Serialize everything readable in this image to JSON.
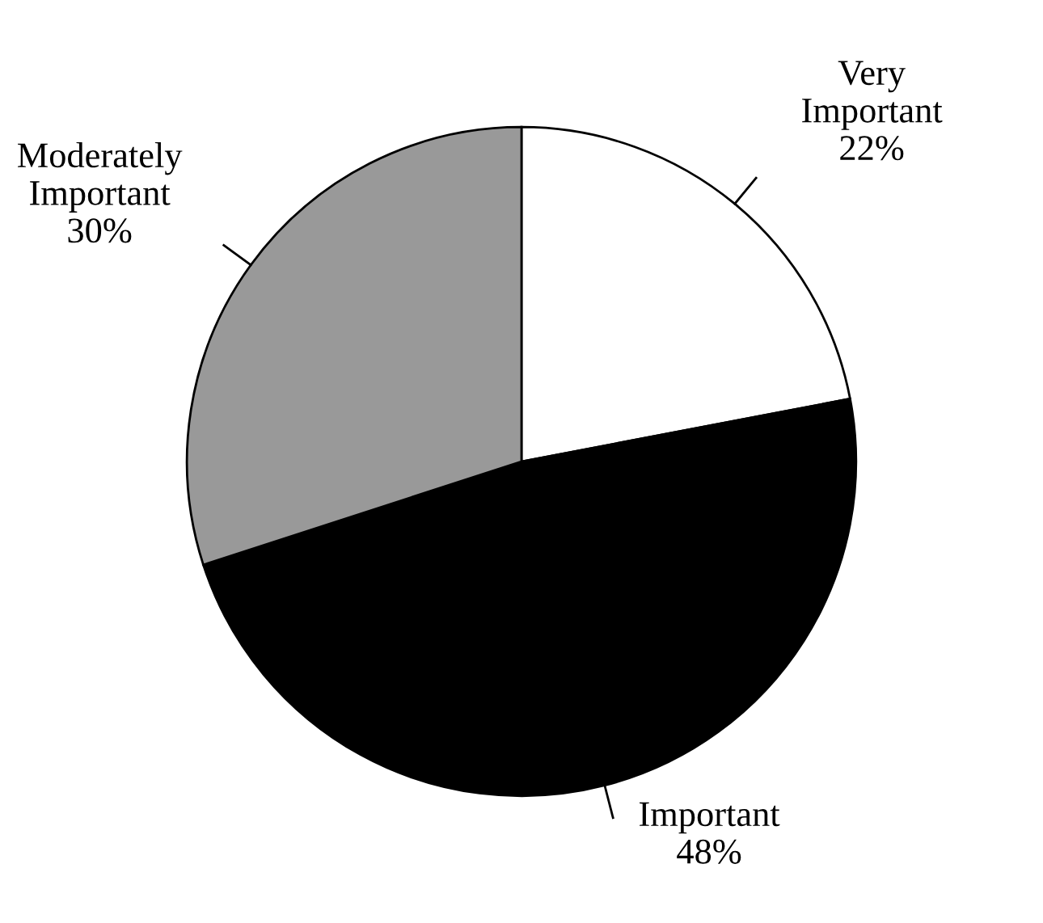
{
  "chart_data": {
    "type": "pie",
    "categories": [
      "Very Important",
      "Important",
      "Moderately Important"
    ],
    "values": [
      22,
      48,
      30
    ],
    "value_labels": [
      "22%",
      "48%",
      "30%"
    ],
    "colors": [
      "#ffffff",
      "#000000",
      "#999999"
    ]
  }
}
